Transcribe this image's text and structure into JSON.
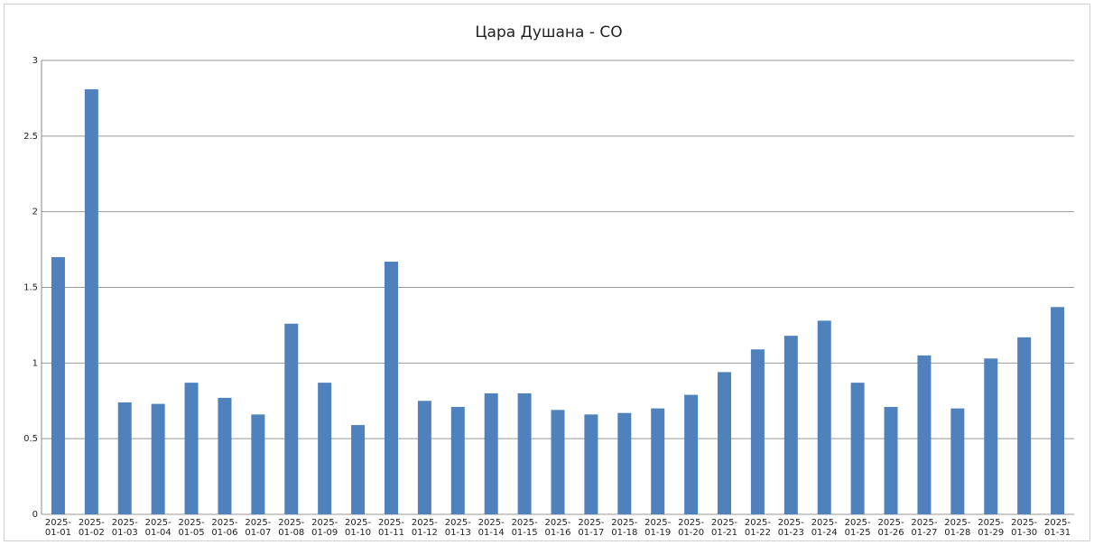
{
  "chart_data": {
    "type": "bar",
    "title": "Цара Душана - CO",
    "categories": [
      "2025-01-01",
      "2025-01-02",
      "2025-01-03",
      "2025-01-04",
      "2025-01-05",
      "2025-01-06",
      "2025-01-07",
      "2025-01-08",
      "2025-01-09",
      "2025-01-10",
      "2025-01-11",
      "2025-01-12",
      "2025-01-13",
      "2025-01-14",
      "2025-01-15",
      "2025-01-16",
      "2025-01-17",
      "2025-01-18",
      "2025-01-19",
      "2025-01-20",
      "2025-01-21",
      "2025-01-22",
      "2025-01-23",
      "2025-01-24",
      "2025-01-25",
      "2025-01-26",
      "2025-01-27",
      "2025-01-28",
      "2025-01-29",
      "2025-01-30",
      "2025-01-31"
    ],
    "values": [
      1.7,
      2.81,
      0.74,
      0.73,
      0.87,
      0.77,
      0.66,
      1.26,
      0.87,
      0.59,
      1.67,
      0.75,
      0.71,
      0.8,
      0.8,
      0.69,
      0.66,
      0.67,
      0.7,
      0.79,
      0.94,
      1.09,
      1.18,
      1.28,
      0.87,
      0.71,
      1.05,
      0.7,
      1.03,
      1.17,
      1.37
    ],
    "color": "#4f81bd",
    "ylim": [
      0,
      3
    ],
    "yticks": [
      0,
      0.5,
      1,
      1.5,
      2,
      2.5,
      3
    ],
    "grid": true
  }
}
